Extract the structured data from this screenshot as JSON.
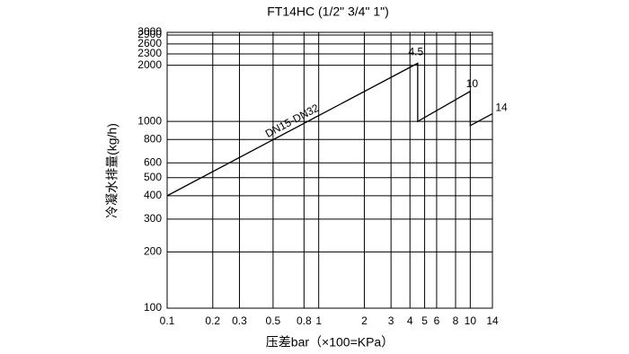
{
  "chart_data": {
    "type": "line",
    "title": "FT14HC (1/2\" 3/4\" 1\")",
    "x_label": "压差bar（×100=KPa）",
    "y_label": "冷凝水排量(kg/h)",
    "log_x": true,
    "log_y": true,
    "grid": true,
    "xlim": [
      0.1,
      14
    ],
    "xticks": [
      0.1,
      0.2,
      0.3,
      0.5,
      0.8,
      1,
      2,
      3,
      4,
      5,
      6,
      8,
      10,
      14
    ],
    "ylim": [
      100,
      3000
    ],
    "yticks": [
      100,
      200,
      300,
      400,
      500,
      600,
      800,
      1000,
      2000,
      2300,
      2600,
      2900,
      3000
    ],
    "series": [
      {
        "name": "DN15-DN32",
        "color": "#000000",
        "x": [
          0.1,
          4.5,
          4.5,
          10,
          10,
          14
        ],
        "values": [
          400,
          2050,
          1000,
          1450,
          950,
          1100
        ]
      }
    ],
    "annotations": [
      "4.5",
      "10",
      "14"
    ]
  }
}
